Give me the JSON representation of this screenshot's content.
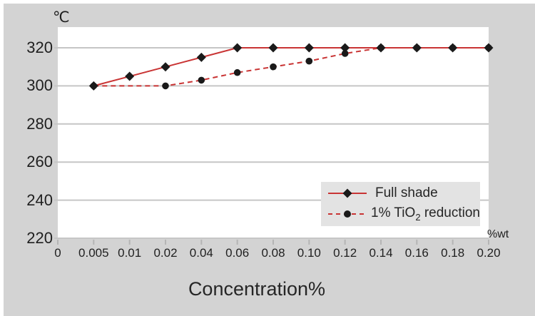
{
  "page": {
    "background_color": "#d3d3d3",
    "plot_background_color": "#ffffff",
    "grid_color": "#c6c6c6",
    "legend_background_color": "#e3e3e3"
  },
  "chart_data": {
    "type": "line",
    "title": "",
    "x_axis": {
      "title": "Concentration%",
      "unit_label": "%wt",
      "categories": [
        "0",
        "0.005",
        "0.01",
        "0.02",
        "0.04",
        "0.06",
        "0.08",
        "0.10",
        "0.12",
        "0.14",
        "0.16",
        "0.18",
        "0.20"
      ]
    },
    "y_axis": {
      "unit_label": "℃",
      "tick_values": [
        320,
        300,
        280,
        260,
        240,
        220
      ],
      "min": 220,
      "max": 330
    },
    "grid": "horizontal gridlines on",
    "legend_position": "inside bottom-right",
    "series": [
      {
        "name": "Full shade",
        "line_style": "solid",
        "marker": "diamond",
        "line_color": "#c93434",
        "marker_color": "#1a1a1a",
        "points": [
          [
            "0.005",
            300
          ],
          [
            "0.01",
            305
          ],
          [
            "0.02",
            310
          ],
          [
            "0.04",
            315
          ],
          [
            "0.06",
            320
          ],
          [
            "0.08",
            320
          ],
          [
            "0.10",
            320
          ],
          [
            "0.12",
            320
          ],
          [
            "0.14",
            320
          ],
          [
            "0.16",
            320
          ],
          [
            "0.18",
            320
          ],
          [
            "0.20",
            320
          ]
        ]
      },
      {
        "name": "1% TiO₂ reduction",
        "line_style": "dashed",
        "marker": "circle",
        "line_color": "#c93434",
        "marker_color": "#1a1a1a",
        "points": [
          [
            "0.005",
            300
          ],
          [
            "0.02",
            300
          ],
          [
            "0.04",
            303
          ],
          [
            "0.06",
            307
          ],
          [
            "0.08",
            310
          ],
          [
            "0.10",
            313
          ],
          [
            "0.12",
            317
          ],
          [
            "0.14",
            320
          ],
          [
            "0.16",
            320
          ],
          [
            "0.18",
            320
          ],
          [
            "0.20",
            320
          ]
        ]
      }
    ],
    "legend": [
      {
        "label": "Full shade"
      },
      {
        "label": "1% TiO₂ reduction",
        "label_pre": "1% TiO",
        "label_sub": "2",
        "label_post": " reduction"
      }
    ]
  }
}
